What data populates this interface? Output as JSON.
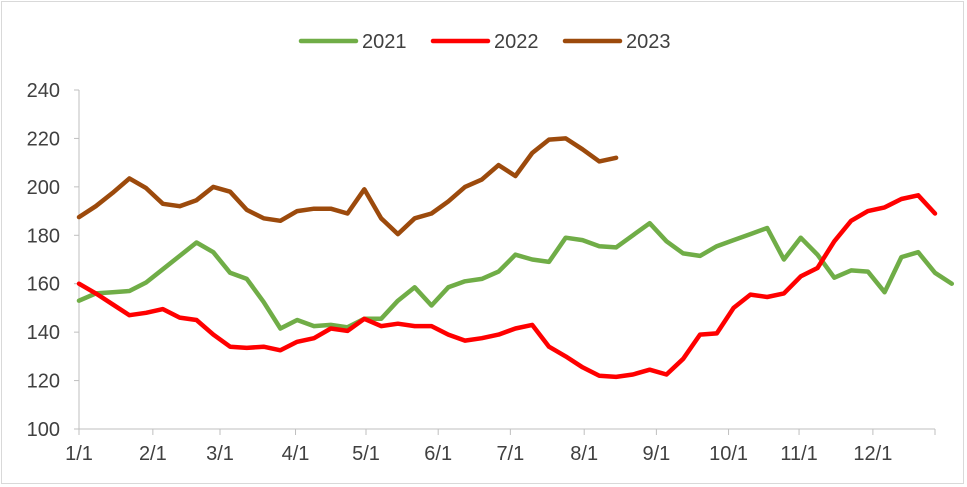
{
  "chart_data": {
    "type": "line",
    "title": "",
    "xlabel": "",
    "ylabel": "",
    "ylim": [
      100,
      240
    ],
    "yticks": [
      100,
      120,
      140,
      160,
      180,
      200,
      220,
      240
    ],
    "xlim": [
      0,
      51
    ],
    "xtick_positions": [
      0,
      4.4,
      8.4,
      12.9,
      17.1,
      21.4,
      25.7,
      30.1,
      34.4,
      38.7,
      42.9,
      47.3,
      51
    ],
    "xtick_labels": [
      "1/1",
      "2/1",
      "3/1",
      "4/1",
      "5/1",
      "6/1",
      "7/1",
      "8/1",
      "9/1",
      "10/1",
      "11/1",
      "12/1",
      ""
    ],
    "grid": false,
    "legend_position": "top-center",
    "series": [
      {
        "name": "2021",
        "color": "#70ad47",
        "values": [
          153,
          156,
          156.5,
          157,
          160.5,
          166,
          171.5,
          177,
          173,
          164.5,
          162,
          152.5,
          141.5,
          145,
          142.5,
          143,
          142,
          145.5,
          145.5,
          153,
          158.5,
          151,
          158.5,
          161,
          162,
          165,
          172,
          170,
          169,
          179,
          178,
          175.5,
          175,
          180,
          185,
          177.5,
          172.5,
          171.5,
          175.5,
          178,
          180.5,
          183,
          170,
          179,
          172,
          162.5,
          165.5,
          165,
          156.5,
          171,
          173,
          164.5,
          160
        ]
      },
      {
        "name": "2022",
        "color": "#ff0000",
        "values": [
          160,
          156,
          151.5,
          147,
          148,
          149.5,
          146,
          145,
          139,
          134,
          133.5,
          134,
          132.5,
          136,
          137.5,
          141.5,
          140.5,
          145.5,
          142.5,
          143.5,
          142.5,
          142.5,
          139,
          136.5,
          137.5,
          139,
          141.5,
          143,
          134,
          130,
          125.5,
          122,
          121.5,
          122.5,
          124.5,
          122.5,
          129,
          139,
          139.5,
          150,
          155.5,
          154.5,
          156,
          163,
          166.5,
          177.5,
          186,
          190,
          191.5,
          195,
          196.5,
          189
        ]
      },
      {
        "name": "2023",
        "color": "#9c4a0c",
        "values": [
          187.5,
          192,
          197.5,
          203.5,
          199.5,
          193,
          192,
          194.5,
          200,
          198,
          190.5,
          187,
          186,
          190,
          191,
          191,
          189,
          199,
          187,
          180.5,
          187,
          189,
          194,
          200,
          203,
          209,
          204.5,
          214,
          219.5,
          220,
          215.5,
          210.5,
          212
        ]
      }
    ]
  }
}
